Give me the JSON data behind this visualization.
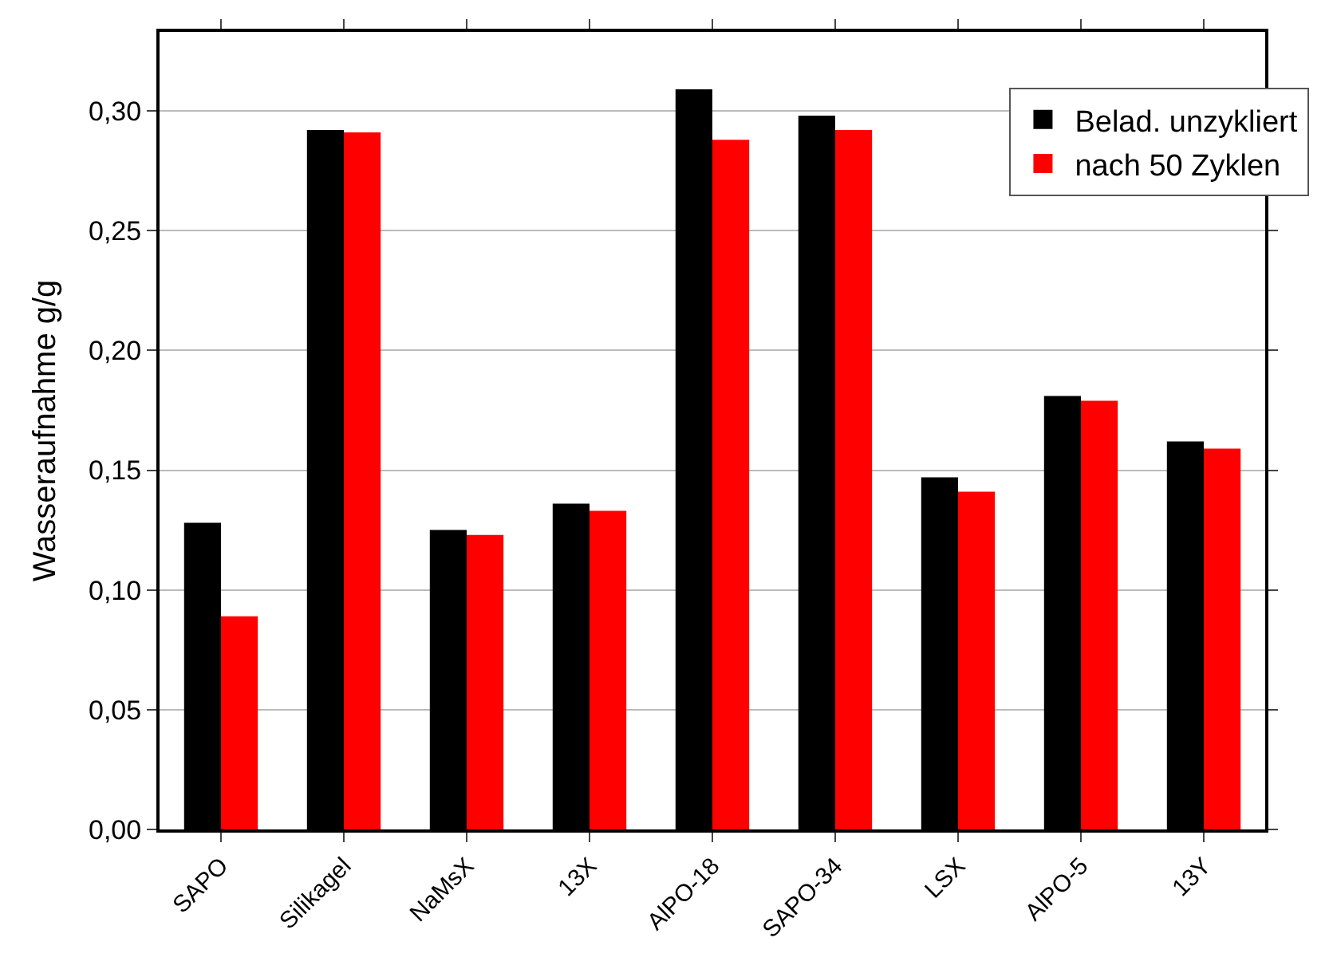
{
  "chart_data": {
    "type": "bar",
    "ylabel": "Wasseraufnahme g/g",
    "categories": [
      "SAPO",
      "Silikagel",
      "NaMsX",
      "13X",
      "AlPO-18",
      "SAPO-34",
      "LSX",
      "AlPO-5",
      "13Y"
    ],
    "series": [
      {
        "name": "Belad. unzykliert",
        "color": "#000000",
        "values": [
          0.128,
          0.292,
          0.125,
          0.136,
          0.309,
          0.298,
          0.147,
          0.181,
          0.162
        ]
      },
      {
        "name": "nach 50 Zyklen",
        "color": "#ff0000",
        "values": [
          0.089,
          0.291,
          0.123,
          0.133,
          0.288,
          0.292,
          0.141,
          0.179,
          0.159
        ]
      }
    ],
    "ylim": [
      0,
      0.333
    ],
    "yticks": [
      {
        "value": 0,
        "label": "0,00"
      },
      {
        "value": 0.05,
        "label": "0,05"
      },
      {
        "value": 0.1,
        "label": "0,10"
      },
      {
        "value": 0.15,
        "label": "0,15"
      },
      {
        "value": 0.2,
        "label": "0,20"
      },
      {
        "value": 0.25,
        "label": "0,25"
      },
      {
        "value": 0.3,
        "label": "0,30"
      }
    ],
    "grid": "y",
    "legend": "top right"
  }
}
